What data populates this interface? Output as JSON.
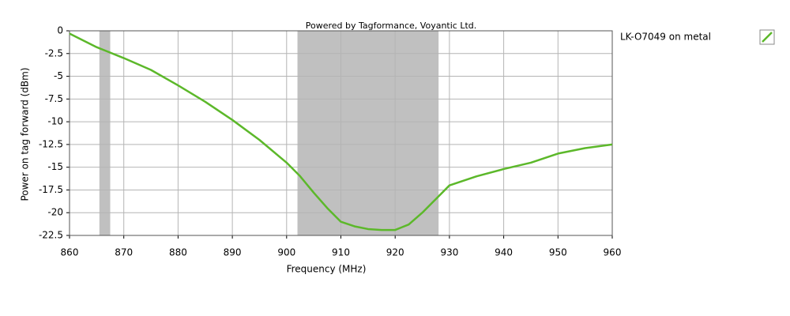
{
  "chart_data": {
    "type": "line",
    "title": "Powered by Tagformance, Voyantic Ltd.",
    "x_label": "Frequency (MHz)",
    "y_label": "Power on tag forward (dBm)",
    "xlim": [
      860,
      960
    ],
    "ylim": [
      -22.5,
      0
    ],
    "xticks": [
      860,
      870,
      880,
      890,
      900,
      910,
      920,
      930,
      940,
      950,
      960
    ],
    "yticks": [
      0,
      -2.5,
      -5,
      -7.5,
      -10,
      -12.5,
      -15,
      -17.5,
      -20,
      -22.5
    ],
    "grid": true,
    "shaded_bands": {
      "color": "#c0c0c0",
      "ranges": [
        [
          865.5,
          867.5
        ],
        [
          902,
          928
        ]
      ]
    },
    "x": [
      860,
      865,
      870,
      875,
      880,
      885,
      890,
      895,
      900,
      902.5,
      905,
      907.5,
      910,
      912.5,
      915,
      917.5,
      920,
      922.5,
      925,
      927.5,
      930,
      935,
      940,
      945,
      950,
      955,
      960
    ],
    "series": [
      {
        "name": "LK-O7049 on metal",
        "color": "#5cb82a",
        "values": [
          -0.3,
          -1.8,
          -3.0,
          -4.3,
          -6.0,
          -7.8,
          -9.8,
          -12.0,
          -14.5,
          -16.0,
          -17.8,
          -19.5,
          -21.0,
          -21.5,
          -21.8,
          -21.9,
          -21.9,
          -21.3,
          -20.0,
          -18.5,
          -17.0,
          -16.0,
          -15.2,
          -14.5,
          -13.5,
          -12.9,
          -12.5
        ]
      }
    ],
    "legend": "right"
  }
}
